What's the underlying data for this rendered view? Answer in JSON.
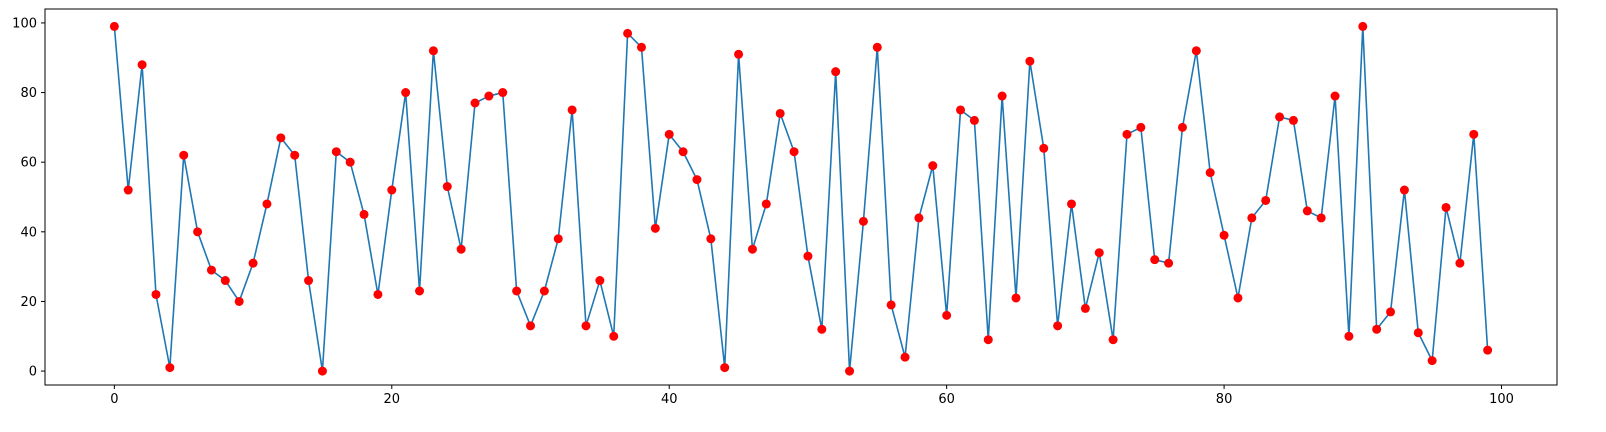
{
  "chart_data": {
    "type": "line",
    "title": "",
    "xlabel": "",
    "ylabel": "",
    "xlim": [
      -5,
      104
    ],
    "ylim": [
      -4,
      104
    ],
    "xticks": [
      0,
      20,
      40,
      60,
      80,
      100
    ],
    "yticks": [
      0,
      20,
      40,
      60,
      80,
      100
    ],
    "grid": false,
    "line_color": "#1f77b4",
    "marker_color": "#ff0000",
    "x": [
      0,
      1,
      2,
      3,
      4,
      5,
      6,
      7,
      8,
      9,
      10,
      11,
      12,
      13,
      14,
      15,
      16,
      17,
      18,
      19,
      20,
      21,
      22,
      23,
      24,
      25,
      26,
      27,
      28,
      29,
      30,
      31,
      32,
      33,
      34,
      35,
      36,
      37,
      38,
      39,
      40,
      41,
      42,
      43,
      44,
      45,
      46,
      47,
      48,
      49,
      50,
      51,
      52,
      53,
      54,
      55,
      56,
      57,
      58,
      59,
      60,
      61,
      62,
      63,
      64,
      65,
      66,
      67,
      68,
      69,
      70,
      71,
      72,
      73,
      74,
      75,
      76,
      77,
      78,
      79,
      80,
      81,
      82,
      83,
      84,
      85,
      86,
      87,
      88,
      89,
      90,
      91,
      92,
      93,
      94,
      95,
      96,
      97,
      98,
      99
    ],
    "y": [
      99,
      52,
      88,
      22,
      1,
      62,
      40,
      29,
      26,
      20,
      31,
      48,
      67,
      62,
      26,
      0,
      63,
      60,
      45,
      22,
      52,
      80,
      23,
      92,
      53,
      35,
      77,
      79,
      80,
      23,
      13,
      23,
      38,
      75,
      13,
      26,
      10,
      97,
      93,
      41,
      68,
      63,
      55,
      38,
      1,
      91,
      35,
      48,
      74,
      63,
      33,
      12,
      86,
      0,
      43,
      93,
      19,
      4,
      44,
      59,
      16,
      75,
      72,
      9,
      79,
      21,
      89,
      64,
      13,
      48,
      18,
      34,
      9,
      68,
      70,
      32,
      31,
      70,
      92,
      57,
      39,
      21,
      44,
      49,
      73,
      72,
      46,
      44,
      79,
      10,
      99,
      12,
      17,
      52,
      11,
      3,
      47,
      31,
      68,
      6
    ]
  }
}
